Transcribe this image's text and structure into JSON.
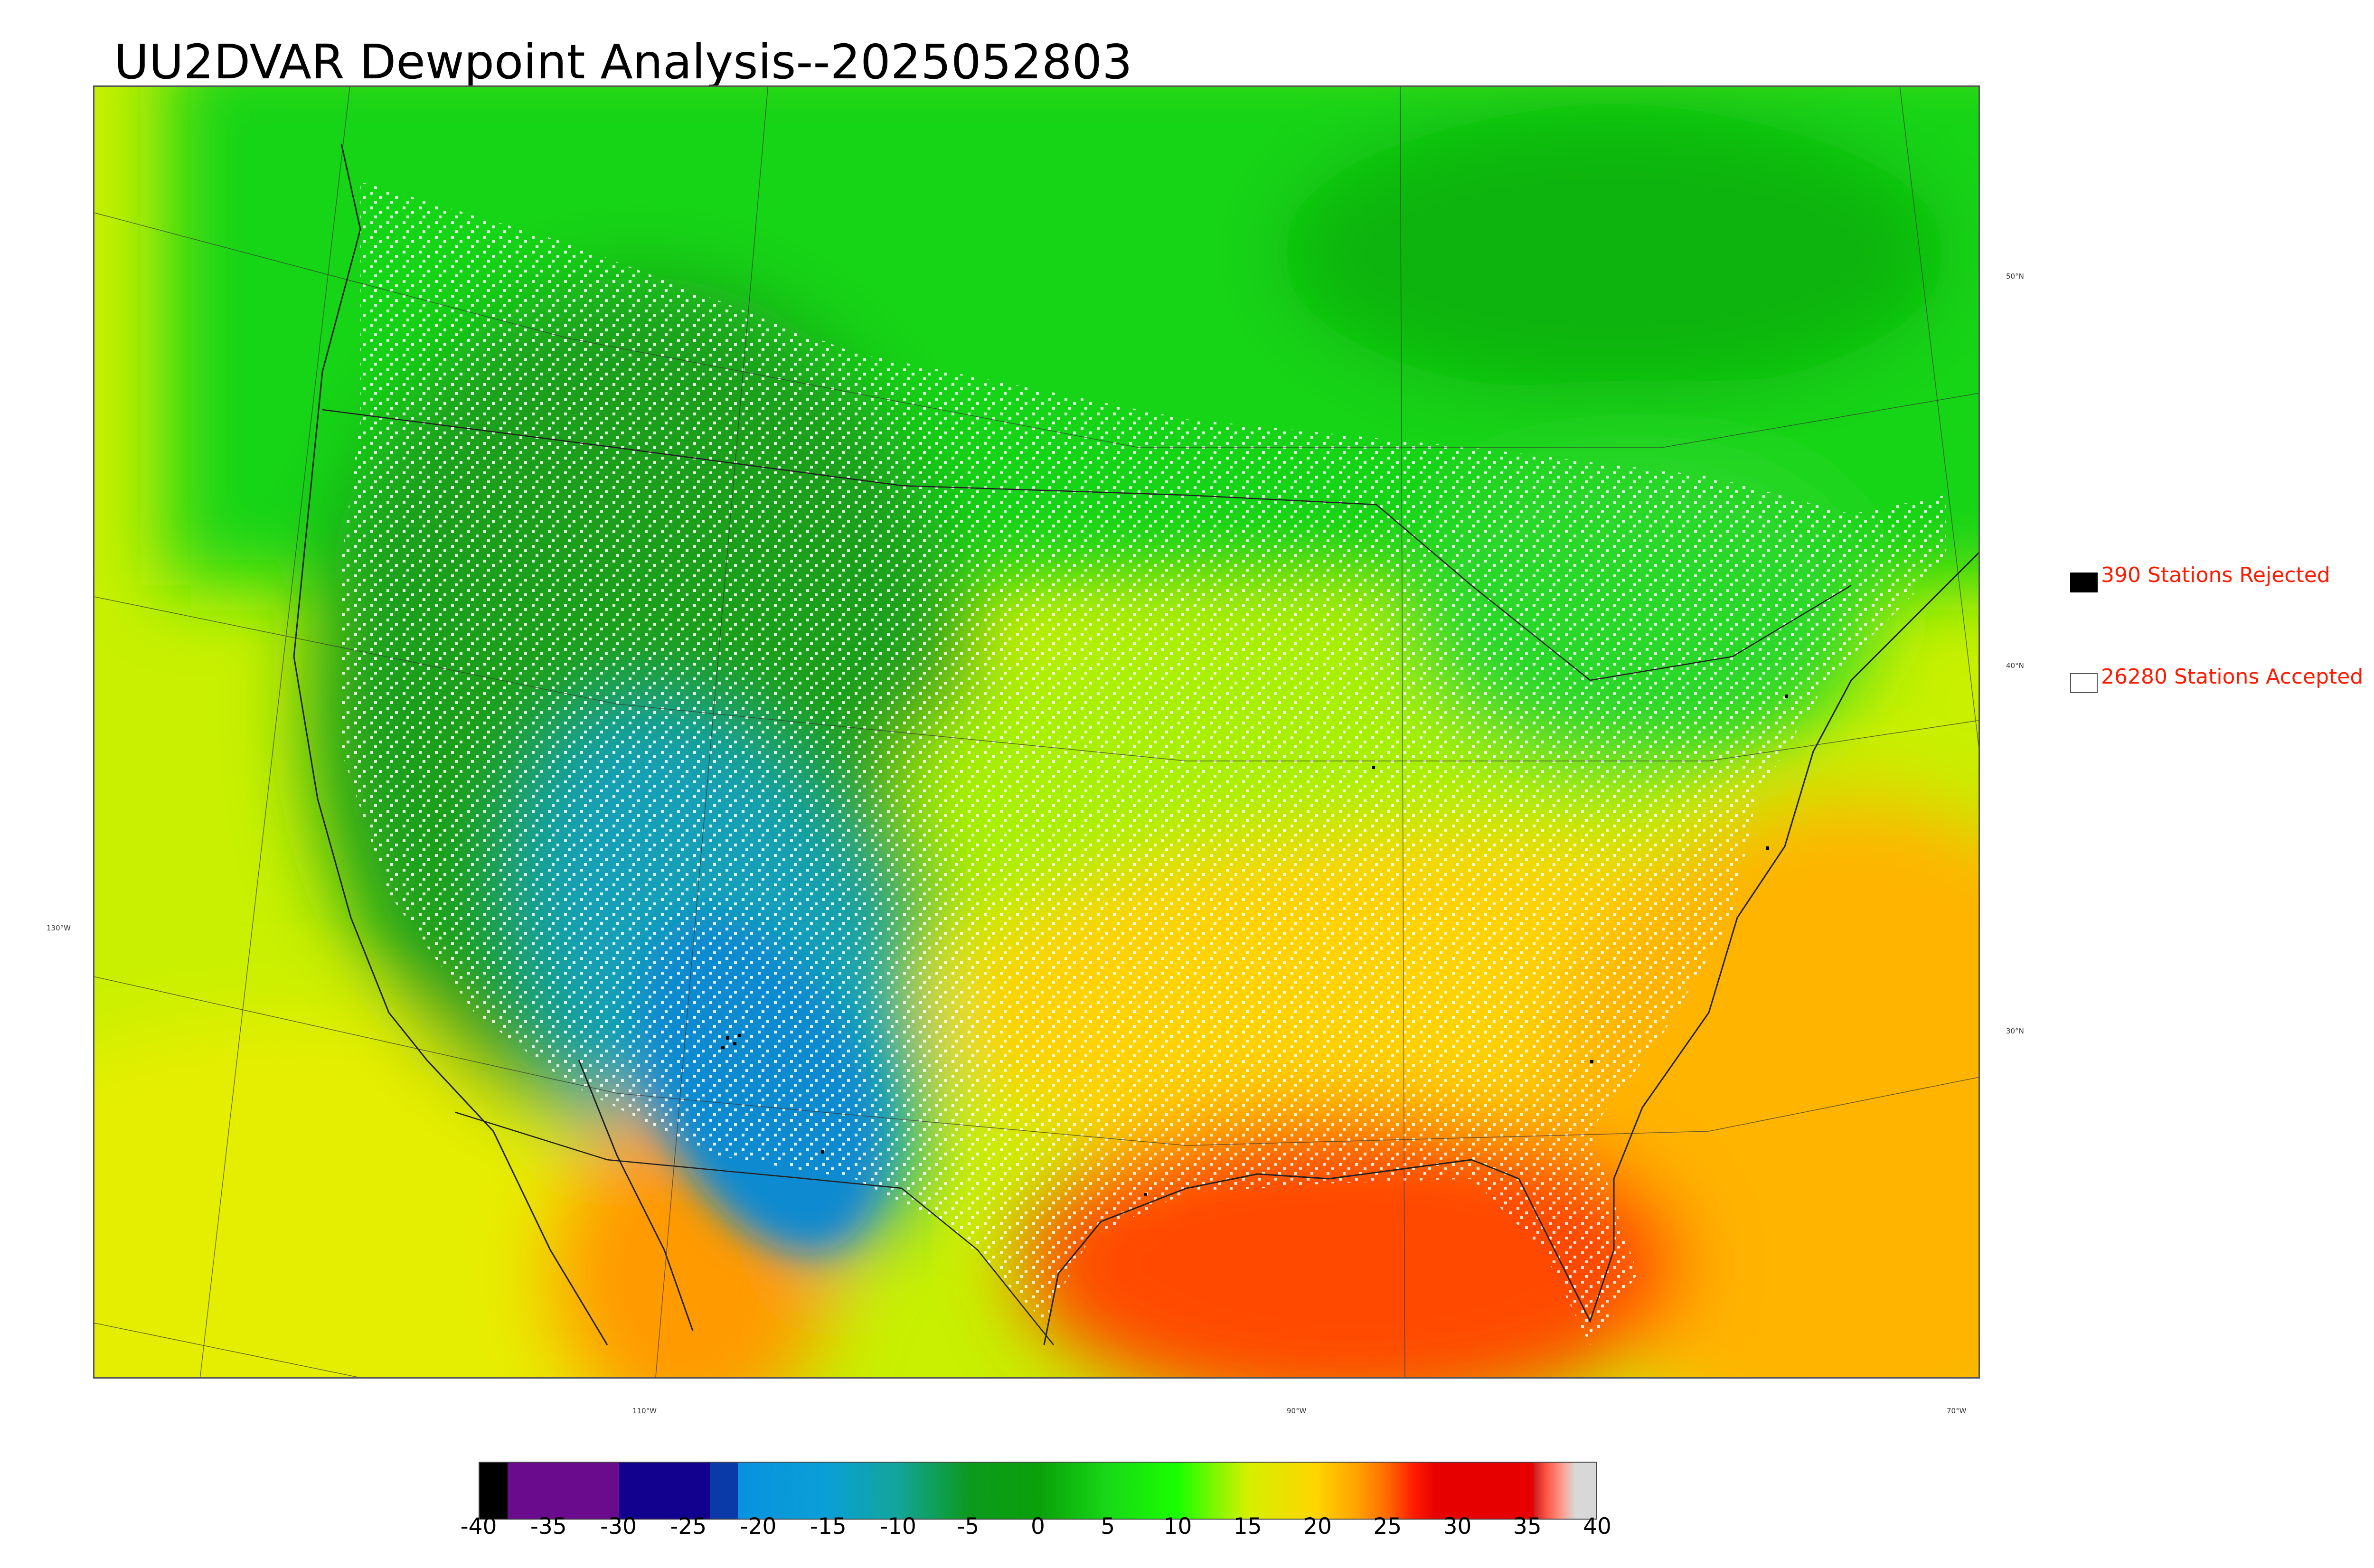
{
  "title": "UU2DVAR Dewpoint Analysis--2025052803",
  "legend": {
    "rejected": {
      "label": "390 Stations Rejected",
      "swatch_color": "#000000"
    },
    "accepted": {
      "label": "26280 Stations Accepted",
      "swatch_color": "#ffffff"
    }
  },
  "graticule": {
    "lat_labels": [
      "50°N",
      "40°N",
      "30°N"
    ],
    "lon_labels": [
      "130°W",
      "110°W",
      "90°W",
      "70°W"
    ]
  },
  "colorbar": {
    "ticks": [
      "-40",
      "-35",
      "-30",
      "-25",
      "-20",
      "-15",
      "-10",
      "-5",
      "0",
      "5",
      "10",
      "15",
      "20",
      "25",
      "30",
      "35",
      "40"
    ],
    "min": -40,
    "max": 40,
    "stops": [
      {
        "v": -40,
        "c": "#000000"
      },
      {
        "v": -38,
        "c": "#000000"
      },
      {
        "v": -38,
        "c": "#6a0a8c"
      },
      {
        "v": -30,
        "c": "#6a0a8c"
      },
      {
        "v": -30,
        "c": "#12008f"
      },
      {
        "v": -23.5,
        "c": "#12008f"
      },
      {
        "v": -23.5,
        "c": "#0a3aa8"
      },
      {
        "v": -21.5,
        "c": "#0a3aa8"
      },
      {
        "v": -21.5,
        "c": "#0892e0"
      },
      {
        "v": -15,
        "c": "#0aa0d6"
      },
      {
        "v": -10,
        "c": "#12a59a"
      },
      {
        "v": -5,
        "c": "#0c9a1e"
      },
      {
        "v": 0,
        "c": "#0aa00a"
      },
      {
        "v": 5,
        "c": "#18d818"
      },
      {
        "v": 10,
        "c": "#1aff00"
      },
      {
        "v": 15,
        "c": "#d4f000"
      },
      {
        "v": 20,
        "c": "#ffd400"
      },
      {
        "v": 23,
        "c": "#ffa000"
      },
      {
        "v": 25,
        "c": "#ff6a00"
      },
      {
        "v": 27,
        "c": "#ff1a00"
      },
      {
        "v": 28.5,
        "c": "#e60000"
      },
      {
        "v": 35.5,
        "c": "#e60000"
      },
      {
        "v": 35.5,
        "c": "#cc1a1a"
      },
      {
        "v": 36.5,
        "c": "#ff5a4a"
      },
      {
        "v": 37.5,
        "c": "#ff9a8a"
      },
      {
        "v": 38.5,
        "c": "#d8d8d8"
      },
      {
        "v": 40,
        "c": "#d8d8d8"
      }
    ]
  },
  "field_colors": {
    "ocean_pacific": "#c8f000",
    "ocean_pacific_south": "#e6ee00",
    "canada": "#14d414",
    "canada_dark": "#08b408",
    "west_dry": "#1aa01a",
    "southwest_blue": "#12a0b8",
    "southwest_deep": "#0a8ad0",
    "plains": "#a8f000",
    "south": "#ffd200",
    "gulf": "#ff4800",
    "atlantic": "#ffb400",
    "mexico_pacific": "#ff9a00"
  }
}
